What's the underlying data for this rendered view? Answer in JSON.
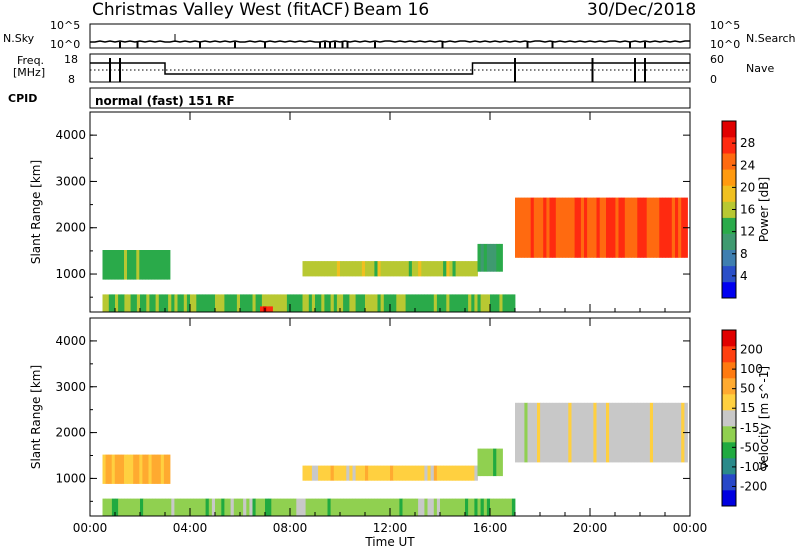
{
  "header": {
    "station": "Christmas Valley West (fitACF)",
    "beam": "Beam 16",
    "date": "30/Dec/2018"
  },
  "panel_labels": {
    "nsky": "N.Sky",
    "nsky_ticks": [
      "10^5",
      "10^0"
    ],
    "nsearch": "N.Search",
    "nsearch_ticks": [
      "10^5",
      "10^0"
    ],
    "freq": "Freq.",
    "freq_unit": "[MHz]",
    "freq_ticks": [
      "18",
      "8"
    ],
    "nave": "Nave",
    "nave_ticks": [
      "60",
      "0"
    ],
    "cpid": "CPID",
    "cpid_mode": "normal (fast) 151 RF"
  },
  "colors": {
    "power_scale": [
      "#0000f0",
      "#2a4fc8",
      "#3f7fb0",
      "#3f9a70",
      "#2aaa4a",
      "#b8c832",
      "#f0c020",
      "#ff9a10",
      "#ff6a10",
      "#ff2a10",
      "#e00000"
    ],
    "velocity_scale": [
      "#0000e0",
      "#2848c8",
      "#2a8a8a",
      "#20aa40",
      "#90d050",
      "#c8c8c8",
      "#ffd040",
      "#ffaa30",
      "#ff7a10",
      "#ff4010",
      "#e00000"
    ]
  },
  "chart_data": [
    {
      "type": "heatmap",
      "name": "power",
      "ylabel": "Slant Range [km]",
      "xlim": [
        0,
        24
      ],
      "ylim": [
        180,
        4500
      ],
      "yticks": [
        1000,
        2000,
        3000,
        4000
      ],
      "colorbar": {
        "label": "Power [dB]",
        "range": [
          0,
          32
        ],
        "ticks": [
          "4",
          "8",
          "12",
          "16",
          "20",
          "24",
          "28"
        ]
      },
      "regions": [
        {
          "t": [
            0.5,
            3.2
          ],
          "r": [
            880,
            1520
          ],
          "level": 0.42
        },
        {
          "t": [
            0.5,
            17.0
          ],
          "r": [
            180,
            560
          ],
          "level": 0.45
        },
        {
          "t": [
            6.8,
            7.3
          ],
          "r": [
            180,
            300
          ],
          "level": 0.95
        },
        {
          "t": [
            8.5,
            15.5
          ],
          "r": [
            950,
            1280
          ],
          "level": 0.5
        },
        {
          "t": [
            15.5,
            16.5
          ],
          "r": [
            1050,
            1650
          ],
          "level": 0.35
        },
        {
          "t": [
            17.0,
            23.9
          ],
          "r": [
            1350,
            2650
          ],
          "level": 0.85
        }
      ]
    },
    {
      "type": "heatmap",
      "name": "velocity",
      "xlabel": "Time UT",
      "ylabel": "Slant Range [km]",
      "xlim": [
        0,
        24
      ],
      "ylim": [
        180,
        4500
      ],
      "yticks": [
        1000,
        2000,
        3000,
        4000
      ],
      "xticks": [
        "00:00",
        "04:00",
        "08:00",
        "12:00",
        "16:00",
        "20:00",
        "00:00"
      ],
      "colorbar": {
        "label": "Velocity [m s^-1]",
        "ticks": [
          "200",
          "100",
          "50",
          "15",
          "-15",
          "-50",
          "-100",
          "-200"
        ]
      },
      "regions": [
        {
          "t": [
            0.5,
            3.2
          ],
          "r": [
            880,
            1520
          ],
          "level": 0.68
        },
        {
          "t": [
            0.5,
            17.0
          ],
          "r": [
            180,
            560
          ],
          "level": 0.4
        },
        {
          "t": [
            8.5,
            15.5
          ],
          "r": [
            950,
            1280
          ],
          "level": 0.6
        },
        {
          "t": [
            15.5,
            16.5
          ],
          "r": [
            1050,
            1650
          ],
          "level": 0.38
        },
        {
          "t": [
            17.0,
            23.9
          ],
          "r": [
            1350,
            2650
          ],
          "level": 0.5
        }
      ]
    }
  ]
}
